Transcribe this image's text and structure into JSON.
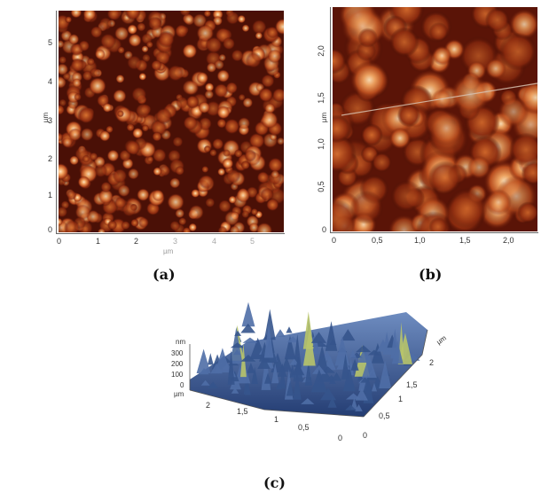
{
  "panel_a": {
    "caption": "(a)",
    "y_ticks": [
      "5",
      "4",
      "3",
      "2",
      "1",
      "0"
    ],
    "x_ticks": [
      "0",
      "1",
      "2",
      "3",
      "4",
      "5"
    ],
    "y_unit": "µm",
    "x_unit": "µm"
  },
  "panel_b": {
    "caption": "(b)",
    "y_ticks": [
      "2,0",
      "1,5",
      "1,0",
      "0,5",
      "0"
    ],
    "x_ticks": [
      "0",
      "0,5",
      "1,0",
      "1,5",
      "2,0"
    ],
    "y_unit": "µm"
  },
  "panel_c": {
    "caption": "(c)",
    "z_unit": "nm",
    "z_ticks": [
      "300",
      "200",
      "100",
      "0"
    ],
    "left_unit": "µm",
    "left_ticks": [
      "2",
      "1,5",
      "1",
      "0,5",
      "0"
    ],
    "right_unit": "µm",
    "right_ticks": [
      "2",
      "1,5",
      "1",
      "0,5",
      "0"
    ]
  }
}
